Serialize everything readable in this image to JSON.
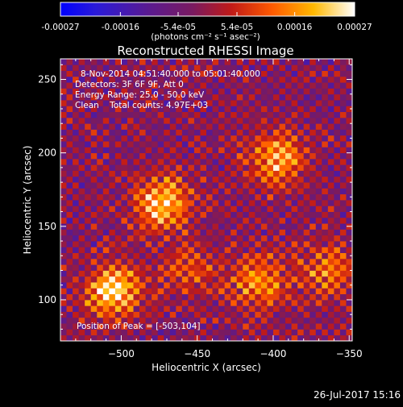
{
  "colorbar": {
    "ticks": [
      "-0.00027",
      "-0.00016",
      "-5.4e-05",
      "5.4e-05",
      "0.00016",
      "0.00027"
    ],
    "tick_values": [
      -0.00027,
      -0.00016,
      -5.4e-05,
      5.4e-05,
      0.00016,
      0.00027
    ],
    "range": [
      -0.00027,
      0.00027
    ],
    "units_text": "(photons cm⁻² s⁻¹ asec⁻²)",
    "colors": [
      "#0000ff",
      "#3b1a8a",
      "#6a1a70",
      "#b81a1a",
      "#ff4400",
      "#ff9a00",
      "#ffd200",
      "#ffffff"
    ]
  },
  "chart_data": {
    "type": "heatmap",
    "title": "Reconstructed RHESSI Image",
    "xlabel": "Heliocentric X (arcsec)",
    "ylabel": "Heliocentric Y (arcsec)",
    "xlim": [
      -540,
      -348
    ],
    "ylim": [
      72,
      264
    ],
    "x_ticks": [
      -500,
      -450,
      -400,
      -350
    ],
    "x_tick_labels": [
      "−500",
      "−450",
      "−400",
      "−350"
    ],
    "y_ticks": [
      100,
      150,
      200,
      250
    ],
    "y_tick_labels": [
      "100",
      "150",
      "200",
      "250"
    ],
    "info_lines": [
      "8-Nov-2014 04:51:40.000 to 05:01:40.000",
      "Detectors: 3F 6F 9F, Att 0",
      "Energy Range: 25.0 - 50.0 keV",
      "Clean    Total counts: 4.97E+03"
    ],
    "peak_text": "Position of Peak = [-503,104]",
    "peak": [
      -503,
      104
    ],
    "grid": false,
    "sources": [
      {
        "x": -473,
        "y": 166,
        "value": 0.00024
      },
      {
        "x": -398,
        "y": 196,
        "value": 0.00021
      },
      {
        "x": -505,
        "y": 106,
        "value": 0.00027
      },
      {
        "x": -410,
        "y": 112,
        "value": 0.0002
      },
      {
        "x": -365,
        "y": 120,
        "value": 0.00015
      },
      {
        "x": -455,
        "y": 120,
        "value": 0.00012
      }
    ]
  },
  "footer": {
    "timestamp": "26-Jul-2017 15:16"
  }
}
